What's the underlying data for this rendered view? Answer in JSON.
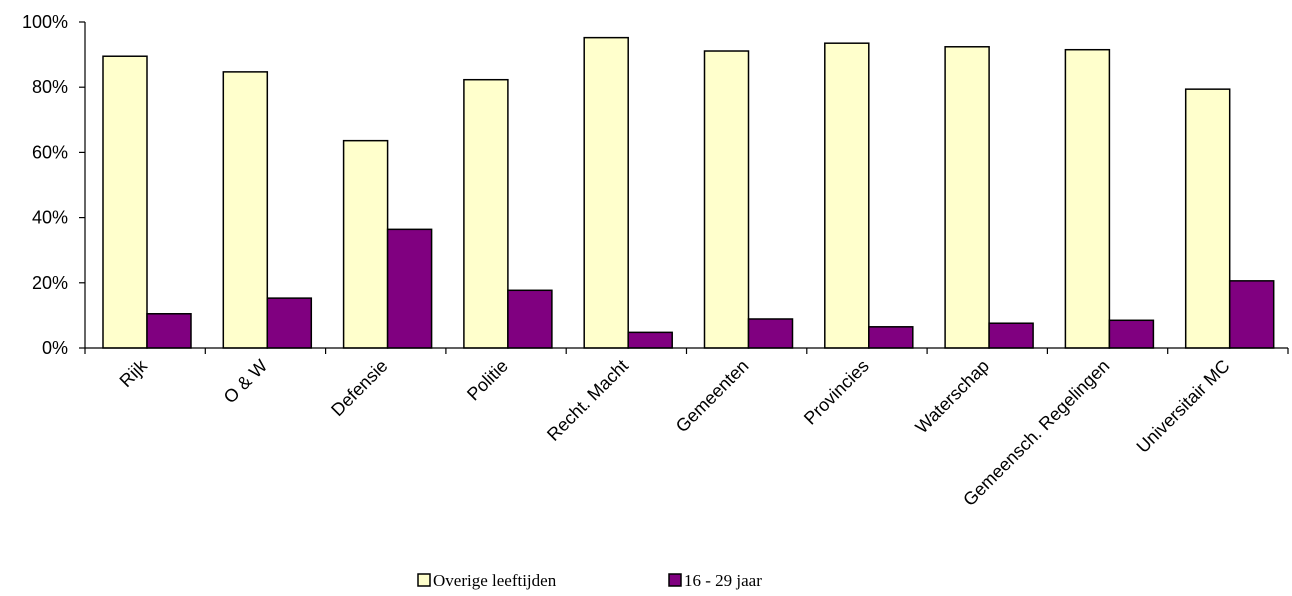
{
  "chart_data": {
    "type": "bar",
    "categories": [
      "Rijk",
      "O & W",
      "Defensie",
      "Politie",
      "Recht. Macht",
      "Gemeenten",
      "Provincies",
      "Waterschap",
      "Gemeensch. Regelingen",
      "Universitair MC"
    ],
    "series": [
      {
        "name": "Overige leeftijden",
        "color": "#ffffcc",
        "values": [
          89.5,
          84.7,
          63.6,
          82.3,
          95.2,
          91.1,
          93.5,
          92.4,
          91.5,
          79.4
        ]
      },
      {
        "name": "16 - 29 jaar",
        "color": "#800080",
        "values": [
          10.5,
          15.3,
          36.4,
          17.7,
          4.8,
          8.9,
          6.5,
          7.6,
          8.5,
          20.6
        ]
      }
    ],
    "ylim": [
      0,
      100
    ],
    "yticks": [
      "0%",
      "20%",
      "40%",
      "60%",
      "80%",
      "100%"
    ],
    "grid": false,
    "legend_position": "bottom"
  }
}
